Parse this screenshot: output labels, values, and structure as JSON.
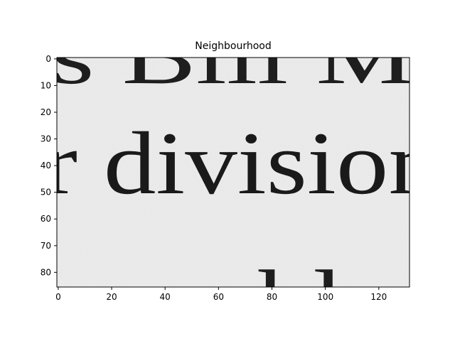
{
  "figure": {
    "title": "Neighbourhood",
    "image_extent": {
      "width": 132,
      "height": 86
    },
    "x_ticks": [
      0,
      20,
      40,
      60,
      80,
      100,
      120
    ],
    "y_ticks": [
      0,
      10,
      20,
      30,
      40,
      50,
      60,
      70,
      80
    ],
    "colormap": "gray",
    "background": "#eeeeee"
  },
  "image_text": {
    "line1": "s Bill Mc",
    "line2": "r division",
    "line3": "s on blac"
  }
}
